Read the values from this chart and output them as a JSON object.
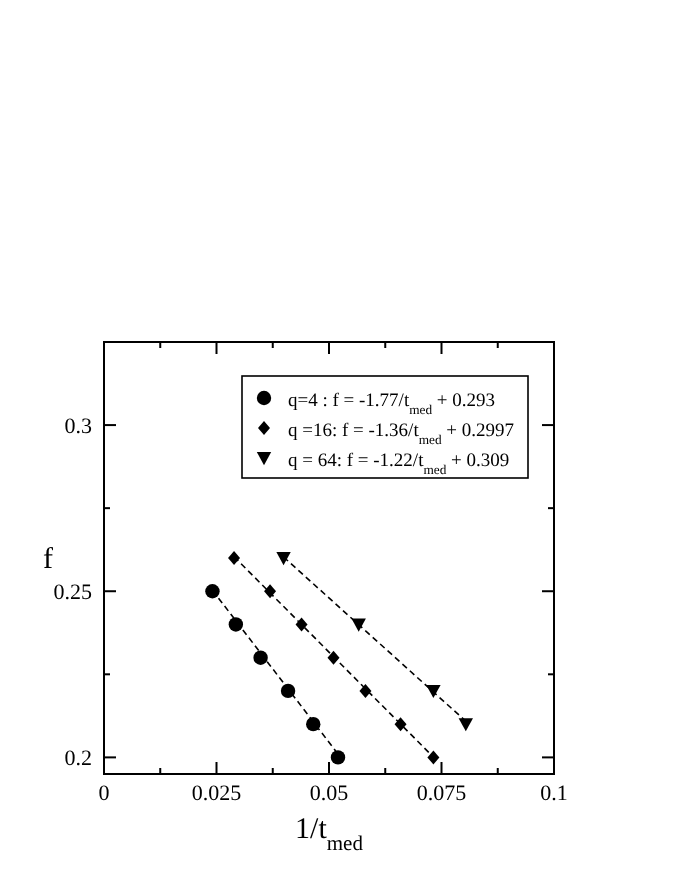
{
  "chart_data": {
    "type": "scatter",
    "xlabel": "1/t$_{med}$",
    "ylabel": "f",
    "xlim": [
      0,
      0.1
    ],
    "ylim": [
      0.195,
      0.325
    ],
    "xticks": [
      0,
      {
        "value": 0.0125,
        "label": null
      },
      0.025,
      {
        "value": 0.0375,
        "label": null
      },
      0.05,
      {
        "value": 0.0625,
        "label": null
      },
      0.075,
      {
        "value": 0.0875,
        "label": null
      },
      0.1
    ],
    "yticks": [
      {
        "value": 0.2,
        "label": "0.2"
      },
      {
        "value": 0.225,
        "label": null
      },
      0.25,
      {
        "value": 0.275,
        "label": null
      },
      0.3
    ],
    "legend": "top right",
    "grid": false,
    "series": [
      {
        "name": "q=4 :  f = -1.77/t$_{med}$ + 0.293",
        "color": "#000000",
        "marker": "circle",
        "x": [
          0.0241,
          0.0293,
          0.0348,
          0.0409,
          0.0465,
          0.052
        ],
        "values": [
          0.25,
          0.24,
          0.23,
          0.22,
          0.21,
          0.2
        ]
      },
      {
        "name": "q =16: f = -1.36/t$_{med}$ + 0.2997",
        "color": "#000000",
        "marker": "diamond",
        "x": [
          0.0289,
          0.0369,
          0.0439,
          0.051,
          0.0581,
          0.0659,
          0.0732
        ],
        "values": [
          0.26,
          0.25,
          0.24,
          0.23,
          0.22,
          0.21,
          0.2
        ]
      },
      {
        "name": "q = 64: f = -1.22/t$_{med}$ + 0.309",
        "color": "#000000",
        "marker": "triangle",
        "x": [
          0.0399,
          0.0566,
          0.0732,
          0.0804
        ],
        "values": [
          0.26,
          0.24,
          0.22,
          0.21
        ]
      },
      {
        "type": "line",
        "color": "#000000",
        "line_style": "dashed",
        "marker": "none",
        "x": [
          0.0241,
          0.052
        ],
        "values": [
          0.2503,
          0.201
        ]
      },
      {
        "type": "line",
        "color": "#000000",
        "line_style": "dashed",
        "marker": "none",
        "x": [
          0.0289,
          0.0732
        ],
        "values": [
          0.2604,
          0.2001
        ]
      },
      {
        "type": "line",
        "color": "#000000",
        "line_style": "dashed",
        "marker": "none",
        "x": [
          0.0399,
          0.0804
        ],
        "values": [
          0.2603,
          0.2109
        ]
      }
    ]
  }
}
